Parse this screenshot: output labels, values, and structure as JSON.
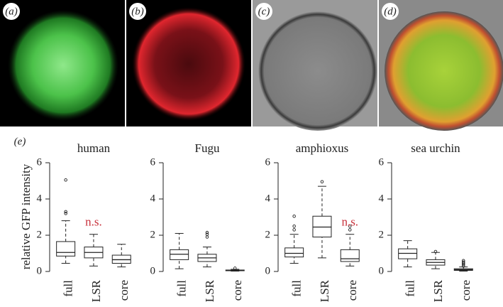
{
  "figure": {
    "image_labels": [
      "(a)",
      "(b)",
      "(c)",
      "(d)"
    ],
    "chart_label": "(e)"
  },
  "chart_data": [
    {
      "type": "box",
      "title": "human",
      "ylabel": "relative GFP intensity",
      "categories": [
        "full",
        "LSR",
        "core"
      ],
      "ylim": [
        -0.3,
        6.3
      ],
      "yticks": [
        0,
        2,
        4,
        6
      ],
      "boxes": [
        {
          "whislo": 0.45,
          "q1": 0.85,
          "med": 1.05,
          "q3": 1.65,
          "whishi": 2.8,
          "fliers": [
            3.2,
            3.3,
            5.05
          ]
        },
        {
          "whislo": 0.3,
          "q1": 0.75,
          "med": 1.05,
          "q3": 1.35,
          "whishi": 2.05,
          "fliers": []
        },
        {
          "whislo": 0.25,
          "q1": 0.45,
          "med": 0.65,
          "q3": 0.9,
          "whishi": 1.5,
          "fliers": []
        }
      ],
      "annotations": [
        {
          "text": "n.s.",
          "category": "LSR",
          "color": "#c8323c"
        }
      ]
    },
    {
      "type": "box",
      "title": "Fugu",
      "categories": [
        "full",
        "LSR",
        "core"
      ],
      "ylim": [
        -0.3,
        6.3
      ],
      "yticks": [
        0,
        2,
        4,
        6
      ],
      "boxes": [
        {
          "whislo": 0.15,
          "q1": 0.65,
          "med": 0.95,
          "q3": 1.2,
          "whishi": 2.1,
          "fliers": []
        },
        {
          "whislo": 0.25,
          "q1": 0.55,
          "med": 0.75,
          "q3": 0.95,
          "whishi": 1.35,
          "fliers": [
            1.9,
            2.05,
            2.15
          ]
        },
        {
          "whislo": 0.02,
          "q1": 0.04,
          "med": 0.06,
          "q3": 0.08,
          "whishi": 0.12,
          "fliers": [
            0.18
          ]
        }
      ]
    },
    {
      "type": "box",
      "title": "amphioxus",
      "categories": [
        "full",
        "LSR",
        "core"
      ],
      "ylim": [
        -0.3,
        6.3
      ],
      "yticks": [
        0,
        2,
        4,
        6
      ],
      "boxes": [
        {
          "whislo": 0.45,
          "q1": 0.8,
          "med": 1.0,
          "q3": 1.3,
          "whishi": 2.05,
          "fliers": [
            2.3,
            2.5,
            3.05
          ]
        },
        {
          "whislo": 0.75,
          "q1": 1.9,
          "med": 2.45,
          "q3": 3.05,
          "whishi": 4.7,
          "fliers": [
            4.95
          ]
        },
        {
          "whislo": 0.3,
          "q1": 0.55,
          "med": 0.7,
          "q3": 1.2,
          "whishi": 2.05,
          "fliers": [
            2.3,
            2.5
          ]
        }
      ],
      "annotations": [
        {
          "text": "n.s.",
          "category": "core",
          "color": "#c8323c"
        }
      ]
    },
    {
      "type": "box",
      "title": "sea urchin",
      "categories": [
        "full",
        "LSR",
        "core"
      ],
      "ylim": [
        -0.3,
        6.3
      ],
      "yticks": [
        0,
        2,
        4,
        6
      ],
      "boxes": [
        {
          "whislo": 0.25,
          "q1": 0.7,
          "med": 1.0,
          "q3": 1.25,
          "whishi": 1.7,
          "fliers": []
        },
        {
          "whislo": 0.15,
          "q1": 0.35,
          "med": 0.5,
          "q3": 0.65,
          "whishi": 1.05,
          "fliers": [
            1.1
          ]
        },
        {
          "whislo": 0.02,
          "q1": 0.06,
          "med": 0.1,
          "q3": 0.15,
          "whishi": 0.25,
          "fliers": [
            0.3,
            0.38,
            0.45,
            0.52,
            0.6
          ]
        }
      ]
    }
  ]
}
